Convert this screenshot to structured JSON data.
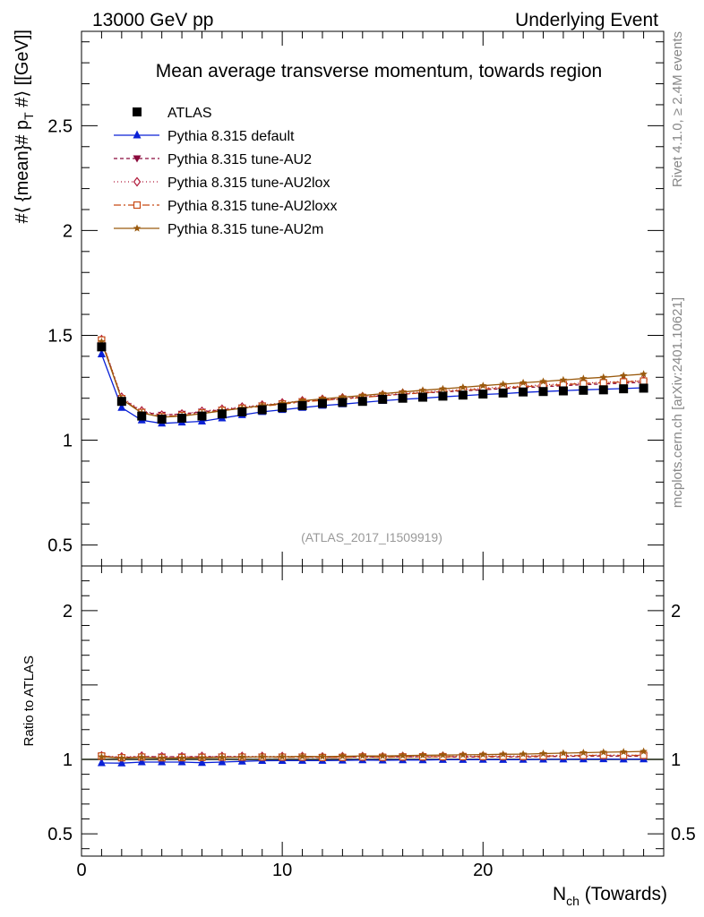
{
  "header": {
    "energy": "13000 GeV pp",
    "process": "Underlying Event",
    "rivet": "Rivet 4.1.0, ≥ 2.4M events",
    "site": "mcplots.cern.ch [arXiv:2401.10621]"
  },
  "chart_data": {
    "type": "line",
    "title": "Mean average transverse momentum, towards region",
    "analysis_label": "(ATLAS_2017_I1509919)",
    "ylabel": "#⟨ {mean}# p_T #⟩ [[GeV]]",
    "ylabel_parts": {
      "a": "#⟨ {mean}# p",
      "sub": "T",
      "b": " #⟩ [[GeV]]"
    },
    "xlabel_parts": {
      "a": "N",
      "sub": "ch",
      "b": " (Towards)"
    },
    "ratio_ylabel": "Ratio to ATLAS",
    "xlim": [
      0,
      29
    ],
    "ylim": [
      0.4,
      2.95
    ],
    "ratio_ylim": [
      0.35,
      2.3
    ],
    "x_ticks": [
      "0",
      "10",
      "20"
    ],
    "y_ticks": [
      "0.5",
      "1",
      "1.5",
      "2",
      "2.5"
    ],
    "ratio_ticks": [
      "0.5",
      "1",
      "2"
    ],
    "x": [
      1,
      2,
      3,
      4,
      5,
      6,
      7,
      8,
      9,
      10,
      11,
      12,
      13,
      14,
      15,
      16,
      17,
      18,
      19,
      20,
      21,
      22,
      23,
      24,
      25,
      26,
      27,
      28
    ],
    "series": [
      {
        "name": "ATLAS",
        "color": "#000000",
        "marker": "square",
        "dash": "",
        "is_data": true,
        "values": [
          1.445,
          1.185,
          1.115,
          1.1,
          1.105,
          1.115,
          1.125,
          1.135,
          1.145,
          1.155,
          1.165,
          1.175,
          1.18,
          1.185,
          1.195,
          1.2,
          1.205,
          1.21,
          1.215,
          1.22,
          1.225,
          1.23,
          1.232,
          1.235,
          1.238,
          1.24,
          1.245,
          1.248
        ]
      },
      {
        "name": "Pythia 8.315 default",
        "color": "#0a21d6",
        "marker": "triangle-up",
        "dash": "",
        "values": [
          1.41,
          1.155,
          1.095,
          1.08,
          1.085,
          1.09,
          1.105,
          1.12,
          1.135,
          1.145,
          1.155,
          1.165,
          1.172,
          1.18,
          1.188,
          1.195,
          1.2,
          1.207,
          1.212,
          1.218,
          1.222,
          1.228,
          1.232,
          1.236,
          1.24,
          1.243,
          1.246,
          1.25
        ]
      },
      {
        "name": "Pythia 8.315 tune-AU2",
        "color": "#8b0a3c",
        "marker": "triangle-down",
        "dash": "4,3",
        "values": [
          1.475,
          1.2,
          1.135,
          1.12,
          1.125,
          1.135,
          1.145,
          1.155,
          1.165,
          1.175,
          1.185,
          1.192,
          1.198,
          1.205,
          1.212,
          1.22,
          1.225,
          1.23,
          1.235,
          1.24,
          1.246,
          1.25,
          1.255,
          1.26,
          1.265,
          1.268,
          1.272,
          1.276
        ]
      },
      {
        "name": "Pythia 8.315 tune-AU2lox",
        "color": "#b01a3a",
        "marker": "diamond",
        "dash": "1,3",
        "values": [
          1.48,
          1.205,
          1.14,
          1.12,
          1.125,
          1.138,
          1.148,
          1.158,
          1.168,
          1.178,
          1.188,
          1.195,
          1.202,
          1.208,
          1.216,
          1.224,
          1.23,
          1.236,
          1.242,
          1.248,
          1.254,
          1.258,
          1.264,
          1.268,
          1.272,
          1.276,
          1.28,
          1.284
        ]
      },
      {
        "name": "Pythia 8.315 tune-AU2loxx",
        "color": "#c84a14",
        "marker": "square-open",
        "dash": "8,3,2,3",
        "values": [
          1.478,
          1.198,
          1.132,
          1.112,
          1.118,
          1.13,
          1.142,
          1.152,
          1.162,
          1.172,
          1.182,
          1.19,
          1.196,
          1.204,
          1.212,
          1.22,
          1.226,
          1.232,
          1.238,
          1.244,
          1.25,
          1.255,
          1.26,
          1.265,
          1.27,
          1.274,
          1.278,
          1.282
        ]
      },
      {
        "name": "Pythia 8.315 tune-AU2m",
        "color": "#9a5a0e",
        "marker": "star",
        "dash": "",
        "values": [
          1.47,
          1.195,
          1.13,
          1.11,
          1.115,
          1.127,
          1.14,
          1.152,
          1.165,
          1.175,
          1.188,
          1.197,
          1.205,
          1.213,
          1.222,
          1.23,
          1.238,
          1.245,
          1.252,
          1.26,
          1.267,
          1.274,
          1.28,
          1.287,
          1.294,
          1.3,
          1.308,
          1.315
        ]
      }
    ]
  }
}
